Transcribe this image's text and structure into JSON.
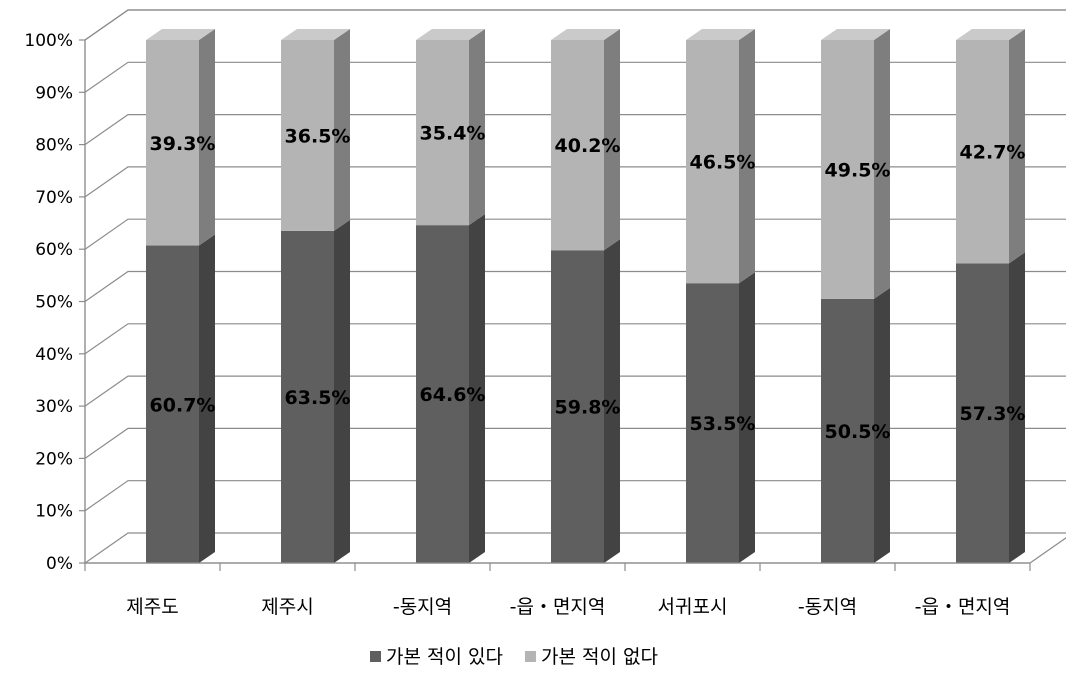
{
  "chart_data": {
    "type": "bar",
    "stacked": true,
    "percent_stacked": true,
    "three_d": true,
    "categories": [
      "제주도",
      "제주시",
      "-동지역",
      "-읍・면지역",
      "서귀포시",
      "-동지역",
      "-읍・면지역"
    ],
    "series": [
      {
        "name": "가본 적이 있다",
        "values": [
          60.7,
          63.5,
          64.6,
          59.8,
          53.5,
          50.5,
          57.3
        ],
        "color": "#5f5f5f"
      },
      {
        "name": "가본 적이 없다",
        "values": [
          39.3,
          36.5,
          35.4,
          40.2,
          46.5,
          49.5,
          42.7
        ],
        "color": "#b4b4b4"
      }
    ],
    "data_labels": [
      [
        "60.7%",
        "63.5%",
        "64.6%",
        "59.8%",
        "53.5%",
        "50.5%",
        "57.3%"
      ],
      [
        "39.3%",
        "36.5%",
        "35.4%",
        "40.2%",
        "46.5%",
        "49.5%",
        "42.7%"
      ]
    ],
    "y_ticks": [
      "0%",
      "10%",
      "20%",
      "30%",
      "40%",
      "50%",
      "60%",
      "70%",
      "80%",
      "90%",
      "100%"
    ],
    "ylim": [
      0,
      100
    ],
    "grid": true,
    "legend_position": "bottom"
  }
}
